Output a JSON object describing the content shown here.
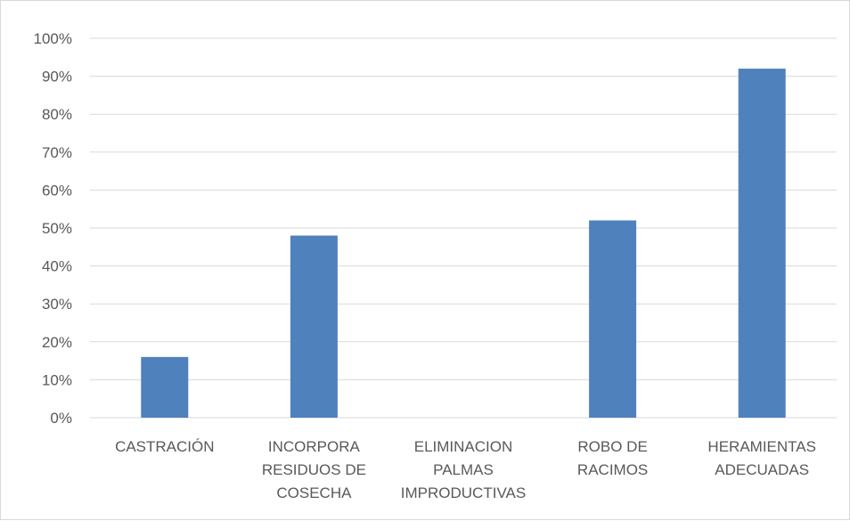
{
  "chart_data": {
    "type": "bar",
    "categories": [
      [
        "CASTRACIÓN"
      ],
      [
        "INCORPORA",
        "RESIDUOS DE",
        "COSECHA"
      ],
      [
        "ELIMINACION",
        "PALMAS",
        "IMPRODUCTIVAS"
      ],
      [
        "ROBO DE",
        "RACIMOS"
      ],
      [
        "HERAMIENTAS",
        "ADECUADAS"
      ]
    ],
    "values": [
      16,
      48,
      0,
      52,
      92
    ],
    "ylim": [
      0,
      100
    ],
    "yticks": [
      "0%",
      "10%",
      "20%",
      "30%",
      "40%",
      "50%",
      "60%",
      "70%",
      "80%",
      "90%",
      "100%"
    ],
    "title": "",
    "xlabel": "",
    "ylabel": "",
    "grid": true,
    "legend": "none",
    "colors": {
      "bar": "#4f81bd",
      "grid": "#d9d9d9",
      "text": "#595959"
    }
  }
}
